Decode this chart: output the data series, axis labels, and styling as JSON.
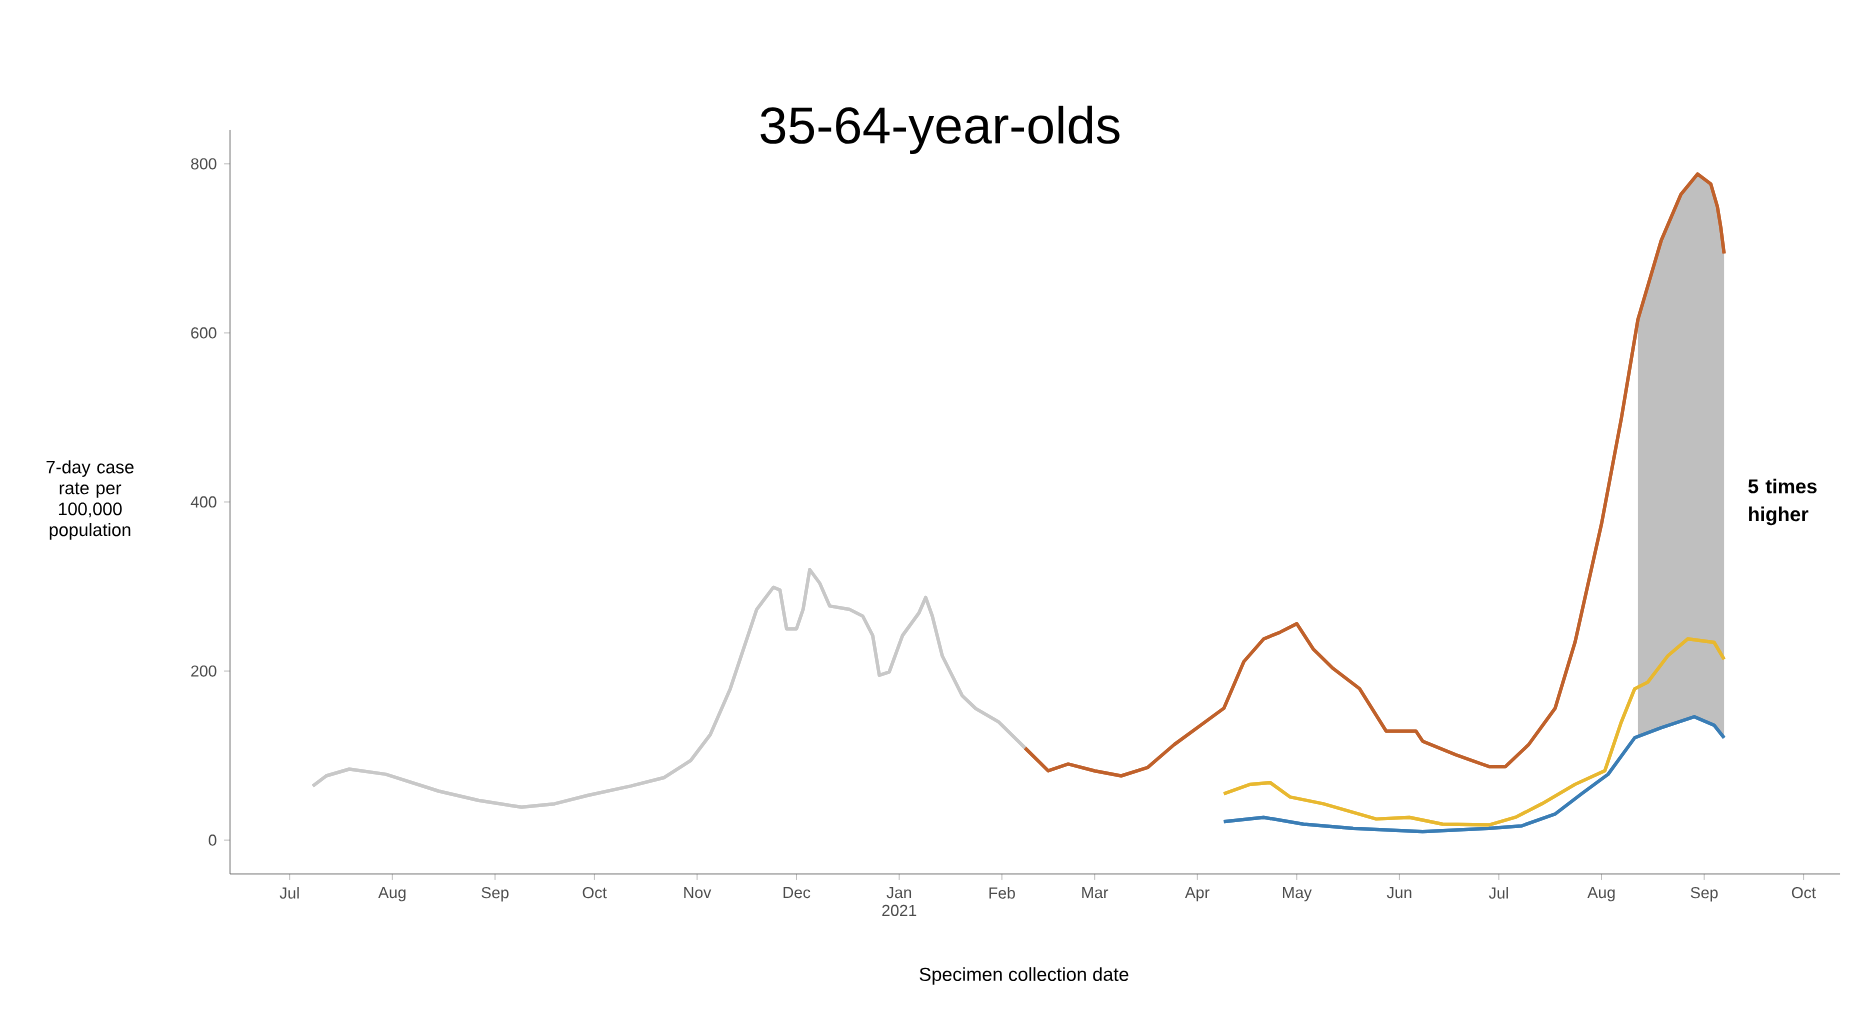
{
  "chart_data": {
    "type": "line",
    "title": "35-64-year-olds",
    "xlabel": "Specimen collection date",
    "ylabel": "7-day case rate per 100,000 population",
    "xlim": [
      "2020-06-13",
      "2021-10-12"
    ],
    "ylim": [
      -40,
      840
    ],
    "yticks": [
      0,
      200,
      400,
      600,
      800
    ],
    "xticks": [
      {
        "value": "2020-07-01",
        "label": "Jul"
      },
      {
        "value": "2020-08-01",
        "label": "Aug"
      },
      {
        "value": "2020-09-01",
        "label": "Sep"
      },
      {
        "value": "2020-10-01",
        "label": "Oct"
      },
      {
        "value": "2020-11-01",
        "label": "Nov"
      },
      {
        "value": "2020-12-01",
        "label": "Dec"
      },
      {
        "value": "2021-01-01",
        "label": "Jan 2021"
      },
      {
        "value": "2021-02-01",
        "label": "Feb"
      },
      {
        "value": "2021-03-01",
        "label": "Mar"
      },
      {
        "value": "2021-04-01",
        "label": "Apr"
      },
      {
        "value": "2021-05-01",
        "label": "May"
      },
      {
        "value": "2021-06-01",
        "label": "Jun"
      },
      {
        "value": "2021-07-01",
        "label": "Jul"
      },
      {
        "value": "2021-08-01",
        "label": "Aug"
      },
      {
        "value": "2021-09-01",
        "label": "Sep"
      },
      {
        "value": "2021-10-01",
        "label": "Oct"
      }
    ],
    "grid": false,
    "series": [
      {
        "color": "#c8c8c8",
        "x": [
          "2020-07-08",
          "2020-07-12",
          "2020-07-19",
          "2020-07-30",
          "2020-08-15",
          "2020-08-27",
          "2020-09-09",
          "2020-09-19",
          "2020-09-29",
          "2020-10-12",
          "2020-10-22",
          "2020-10-30",
          "2020-11-05",
          "2020-11-11",
          "2020-11-19",
          "2020-11-24",
          "2020-11-26",
          "2020-11-28",
          "2020-12-01",
          "2020-12-03",
          "2020-12-05",
          "2020-12-08",
          "2020-12-11",
          "2020-12-17",
          "2020-12-21",
          "2020-12-24",
          "2020-12-26",
          "2020-12-29",
          "2021-01-02",
          "2021-01-07",
          "2021-01-09",
          "2021-01-11",
          "2021-01-14",
          "2021-01-20",
          "2021-01-24",
          "2021-01-31",
          "2021-02-08"
        ],
        "values": [
          64,
          76,
          84,
          78,
          58,
          47,
          39,
          43,
          53,
          64,
          74,
          94,
          125,
          179,
          273,
          299,
          296,
          250,
          250,
          273,
          320,
          304,
          277,
          273,
          265,
          242,
          195,
          199,
          242,
          269,
          287,
          265,
          218,
          171,
          156,
          140,
          109
        ]
      },
      {
        "color": "#c0612b",
        "x": [
          "2021-02-08",
          "2021-02-15",
          "2021-02-21",
          "2021-03-01",
          "2021-03-09",
          "2021-03-17",
          "2021-03-25",
          "2021-04-02",
          "2021-04-09",
          "2021-04-15",
          "2021-04-21",
          "2021-04-26",
          "2021-05-01",
          "2021-05-06",
          "2021-05-12",
          "2021-05-20",
          "2021-05-28",
          "2021-06-06",
          "2021-06-08",
          "2021-06-18",
          "2021-06-28",
          "2021-07-03",
          "2021-07-10",
          "2021-07-18",
          "2021-07-24",
          "2021-08-01",
          "2021-08-07",
          "2021-08-12",
          "2021-08-19",
          "2021-08-25",
          "2021-08-30",
          "2021-09-03",
          "2021-09-05",
          "2021-09-06",
          "2021-09-07"
        ],
        "values": [
          109,
          82,
          90,
          82,
          76,
          86,
          113,
          136,
          156,
          211,
          238,
          246,
          256,
          226,
          203,
          179,
          129,
          129,
          117,
          101,
          87,
          87,
          113,
          156,
          234,
          374,
          499,
          616,
          709,
          764,
          788,
          776,
          749,
          725,
          694
        ]
      },
      {
        "color": "#e8b830",
        "x": [
          "2021-04-09",
          "2021-04-17",
          "2021-04-23",
          "2021-04-29",
          "2021-05-09",
          "2021-05-25",
          "2021-06-04",
          "2021-06-14",
          "2021-06-28",
          "2021-07-06",
          "2021-07-14",
          "2021-07-24",
          "2021-08-02",
          "2021-08-07",
          "2021-08-11",
          "2021-08-15",
          "2021-08-21",
          "2021-08-27",
          "2021-09-04",
          "2021-09-07"
        ],
        "values": [
          55,
          66,
          68,
          51,
          43,
          25,
          27,
          19,
          18,
          27,
          43,
          66,
          82,
          140,
          179,
          187,
          218,
          238,
          234,
          214
        ]
      },
      {
        "color": "#3a7db5",
        "x": [
          "2021-04-09",
          "2021-04-21",
          "2021-05-03",
          "2021-05-18",
          "2021-06-08",
          "2021-06-28",
          "2021-07-08",
          "2021-07-18",
          "2021-07-26",
          "2021-08-03",
          "2021-08-11",
          "2021-08-19",
          "2021-08-29",
          "2021-09-04",
          "2021-09-07"
        ],
        "values": [
          22,
          27,
          19,
          14,
          10,
          14,
          17,
          31,
          55,
          78,
          121,
          133,
          146,
          136,
          121
        ]
      }
    ],
    "bands": [
      {
        "axis": "x",
        "from": "2021-08-12",
        "to": "2021-09-07",
        "label": "5 times higher",
        "color": "#bfbfbf"
      }
    ]
  }
}
